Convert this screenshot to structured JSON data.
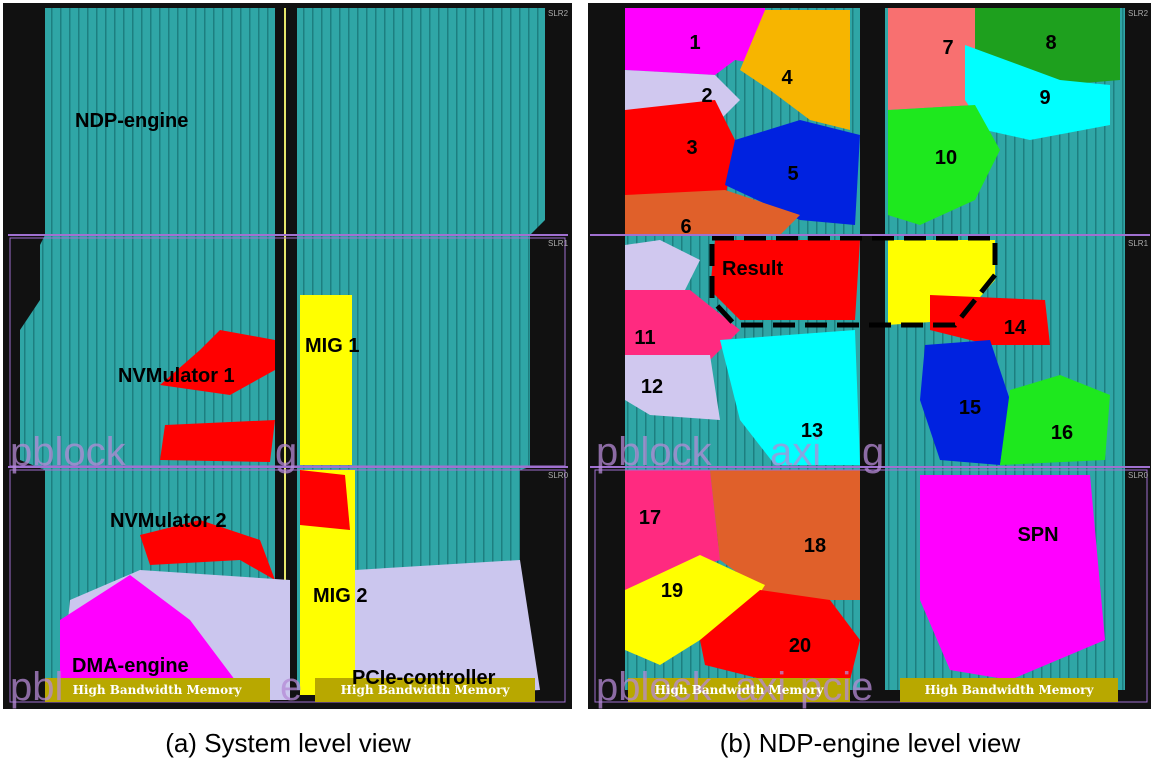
{
  "panels": [
    {
      "caption": "(a) System level view",
      "slr_labels": [
        "SLR2",
        "SLR1",
        "SLR0"
      ],
      "regions": [
        "NDP-engine",
        "NVMulator 1",
        "MIG 1",
        "NVMulator 2",
        "MIG 2",
        "DMA-engine",
        "PCIe-controller"
      ],
      "watermarks": [
        "pblock",
        "g",
        "pbl",
        "e"
      ],
      "hbm_labels": [
        "High Bandwidth Memory",
        "High Bandwidth Memory"
      ]
    },
    {
      "caption": "(b) NDP-engine level view",
      "slr_labels": [
        "SLR2",
        "SLR1",
        "SLR0"
      ],
      "regions": [
        "1",
        "2",
        "3",
        "4",
        "5",
        "6",
        "7",
        "8",
        "9",
        "10",
        "Result",
        "11",
        "12",
        "13",
        "14",
        "15",
        "16",
        "17",
        "18",
        "19",
        "20",
        "SPN"
      ],
      "watermarks": [
        "pblock",
        "axi",
        "g",
        "pblock",
        "axi",
        "pcie"
      ],
      "hbm_labels": [
        "High Bandwidth Memory",
        "High Bandwidth Memory"
      ]
    }
  ]
}
